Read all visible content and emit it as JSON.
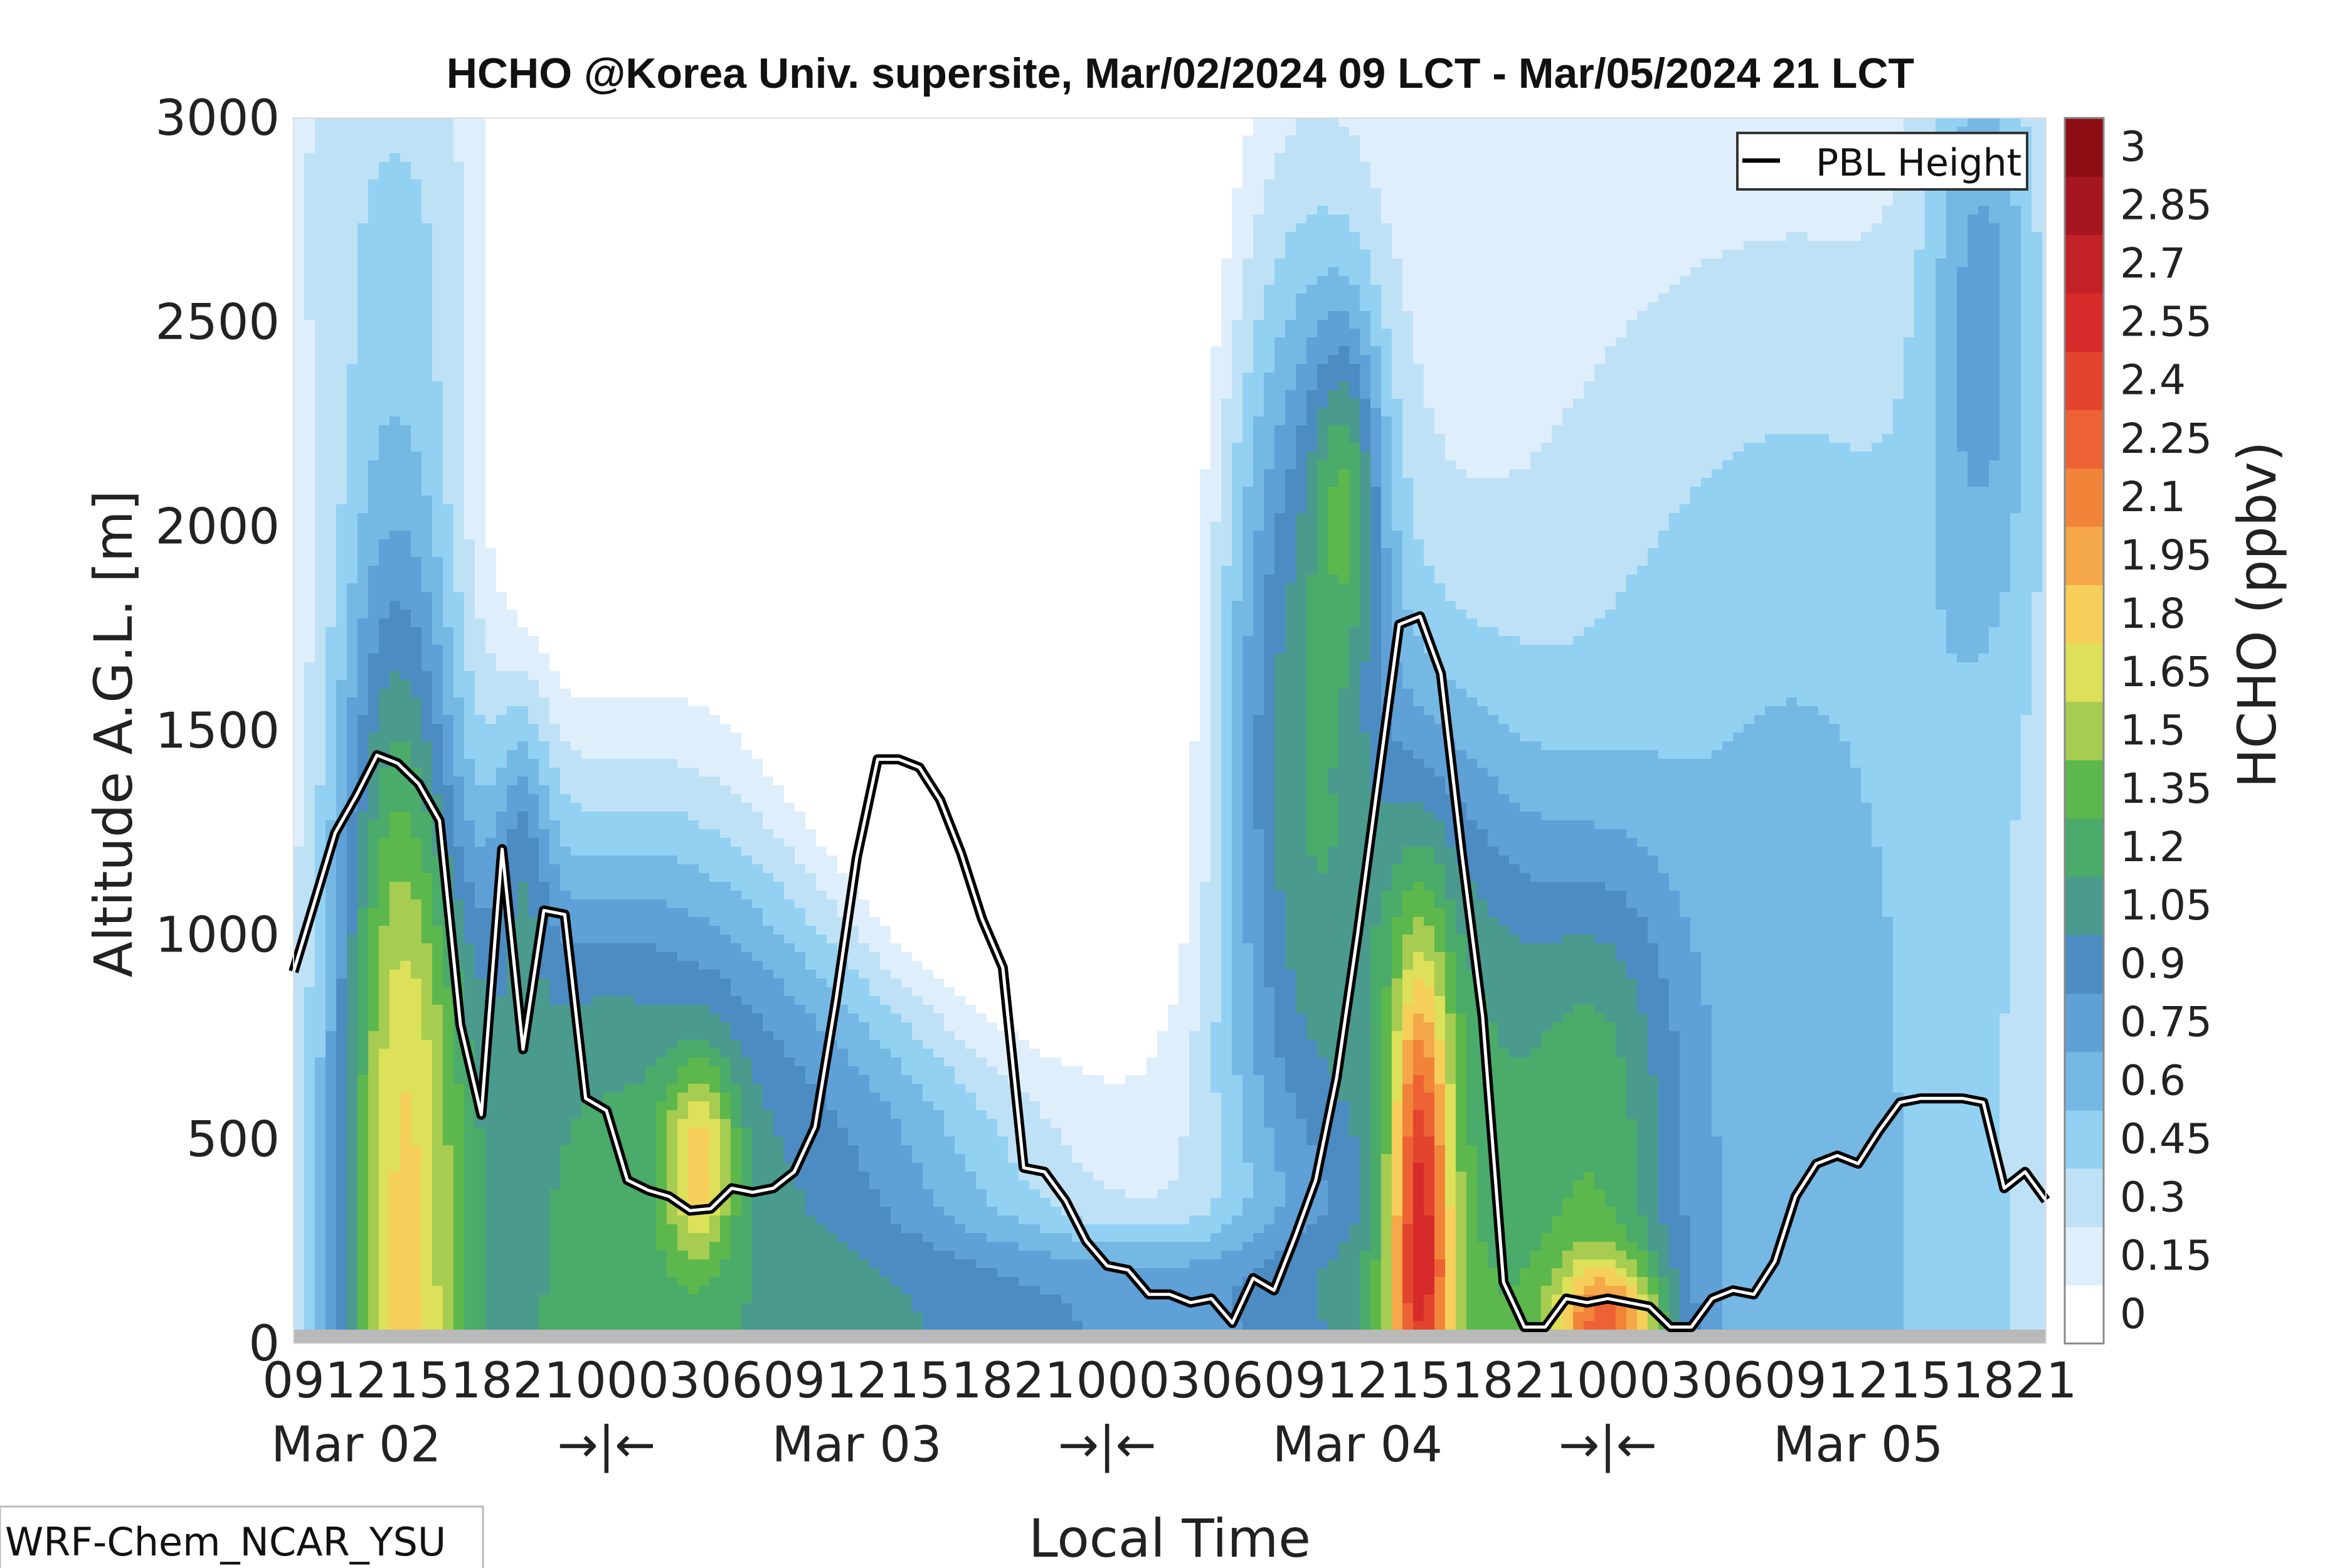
{
  "chart_data": {
    "type": "contour",
    "title": "HCHO @Korea Univ. supersite, Mar/02/2024 09 LCT - Mar/05/2024 21 LCT",
    "xlabel": "Local Time",
    "ylabel": "Altitude A.G.L. [m]",
    "colorbar_label": "HCHO (ppbv)",
    "ylim": [
      0,
      3000
    ],
    "yticks": [
      "0",
      "500",
      "1000",
      "1500",
      "2000",
      "2500",
      "3000"
    ],
    "hours": [
      9,
      12,
      15,
      18,
      21,
      0,
      3,
      6,
      9,
      12,
      15,
      18,
      21,
      0,
      3,
      6,
      9,
      12,
      15,
      18,
      21,
      0,
      3,
      6,
      9,
      12,
      15,
      18,
      21
    ],
    "xtick_labels": [
      "09",
      "12",
      "15",
      "18",
      "21",
      "00",
      "03",
      "06",
      "09",
      "12",
      "15",
      "18",
      "21",
      "00",
      "03",
      "06",
      "09",
      "12",
      "15",
      "18",
      "21",
      "00",
      "03",
      "06",
      "09",
      "12",
      "15",
      "18",
      "21"
    ],
    "date_labels": [
      {
        "label": "Mar 02",
        "hour": 3
      },
      {
        "label": "→|←",
        "hour": 15
      },
      {
        "label": "Mar 03",
        "hour": 27
      },
      {
        "label": "→|←",
        "hour": 39
      },
      {
        "label": "Mar 04",
        "hour": 51
      },
      {
        "label": "→|←",
        "hour": 63
      },
      {
        "label": "Mar 05",
        "hour": 75
      }
    ],
    "colorbar_levels": [
      0,
      0.15,
      0.3,
      0.45,
      0.6,
      0.75,
      0.9,
      1.05,
      1.2,
      1.35,
      1.5,
      1.65,
      1.8,
      1.95,
      2.1,
      2.25,
      2.4,
      2.55,
      2.7,
      2.85,
      3
    ],
    "colorbar_tick_labels": [
      "0",
      "0.15",
      "0.3",
      "0.45",
      "0.6",
      "0.75",
      "0.9",
      "1.05",
      "1.2",
      "1.35",
      "1.5",
      "1.65",
      "1.8",
      "1.95",
      "2.1",
      "2.25",
      "2.4",
      "2.55",
      "2.7",
      "2.85",
      "3"
    ],
    "colormap": [
      "#ffffff",
      "#deeffb",
      "#bfe1f6",
      "#92d1f2",
      "#76b8e4",
      "#5fa0d6",
      "#4c8cc3",
      "#4b9a8e",
      "#4aab6a",
      "#5cb84c",
      "#a6cc52",
      "#dde059",
      "#f6cf5b",
      "#f5a849",
      "#f2843a",
      "#ed6234",
      "#e2442d",
      "#d62b2a",
      "#c12127",
      "#a5161f",
      "#8c0e14"
    ],
    "legend": {
      "entries": [
        "PBL Height"
      ],
      "position": "top-right"
    },
    "pbl_height": {
      "name": "PBL Height",
      "hours": [
        0,
        1,
        2,
        3,
        4,
        5,
        6,
        7,
        8,
        9,
        10,
        11,
        12,
        13,
        14,
        15,
        16,
        17,
        18,
        19,
        20,
        21,
        22,
        23,
        24,
        25,
        26,
        27,
        28,
        29,
        30,
        31,
        32,
        33,
        34,
        35,
        36,
        37,
        38,
        39,
        40,
        41,
        42,
        43,
        44,
        45,
        46,
        47,
        48,
        49,
        50,
        51,
        52,
        53,
        54,
        55,
        56,
        57,
        58,
        59,
        60,
        61,
        62,
        63,
        64,
        65,
        66,
        67,
        68,
        69,
        70,
        71,
        72,
        73,
        74,
        75,
        76,
        77,
        78,
        79,
        80,
        81,
        82,
        83,
        84
      ],
      "values": [
        910,
        1080,
        1250,
        1340,
        1440,
        1420,
        1370,
        1280,
        780,
        560,
        1210,
        720,
        1060,
        1050,
        600,
        570,
        400,
        375,
        360,
        325,
        330,
        380,
        370,
        380,
        420,
        530,
        840,
        1190,
        1430,
        1430,
        1410,
        1330,
        1200,
        1040,
        920,
        430,
        420,
        350,
        250,
        190,
        180,
        120,
        120,
        100,
        110,
        50,
        160,
        130,
        260,
        400,
        650,
        1000,
        1380,
        1760,
        1780,
        1640,
        1200,
        800,
        150,
        40,
        40,
        110,
        100,
        110,
        100,
        90,
        40,
        40,
        110,
        130,
        120,
        200,
        360,
        440,
        460,
        440,
        520,
        590,
        600,
        600,
        600,
        590,
        380,
        420,
        350
      ]
    },
    "model_label": "WRF-Chem_NCAR_YSU",
    "surface_band_color": "#b9b9b9"
  }
}
